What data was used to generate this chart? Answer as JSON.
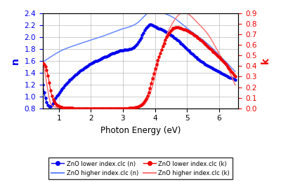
{
  "xlabel": "Photon Energy (eV)",
  "ylabel_left": "n",
  "ylabel_right": "k",
  "xlim": [
    0.5,
    6.6
  ],
  "ylim_left": [
    0.8,
    2.4
  ],
  "ylim_right": [
    0.0,
    0.9
  ],
  "yticks_left": [
    0.8,
    1.0,
    1.2,
    1.4,
    1.6,
    1.8,
    2.0,
    2.2,
    2.4
  ],
  "yticks_right": [
    0.0,
    0.1,
    0.2,
    0.3,
    0.4,
    0.5,
    0.6,
    0.7,
    0.8,
    0.9
  ],
  "xticks": [
    1,
    2,
    3,
    4,
    5,
    6
  ],
  "color_blue_dark": "#0000EE",
  "color_blue_light": "#6688FF",
  "color_red_dark": "#EE0000",
  "color_red_light": "#FF7777",
  "legend_entries": [
    "ZnO lower index.clc (n)",
    "ZnO higher index.clc (n)",
    "ZnO lower index.clc (k)",
    "ZnO higher index.clc (k)"
  ],
  "figsize": [
    4.0,
    2.6
  ],
  "dpi": 100,
  "background_color": "#FFFFFF",
  "grid_color": "#AAAAAA"
}
